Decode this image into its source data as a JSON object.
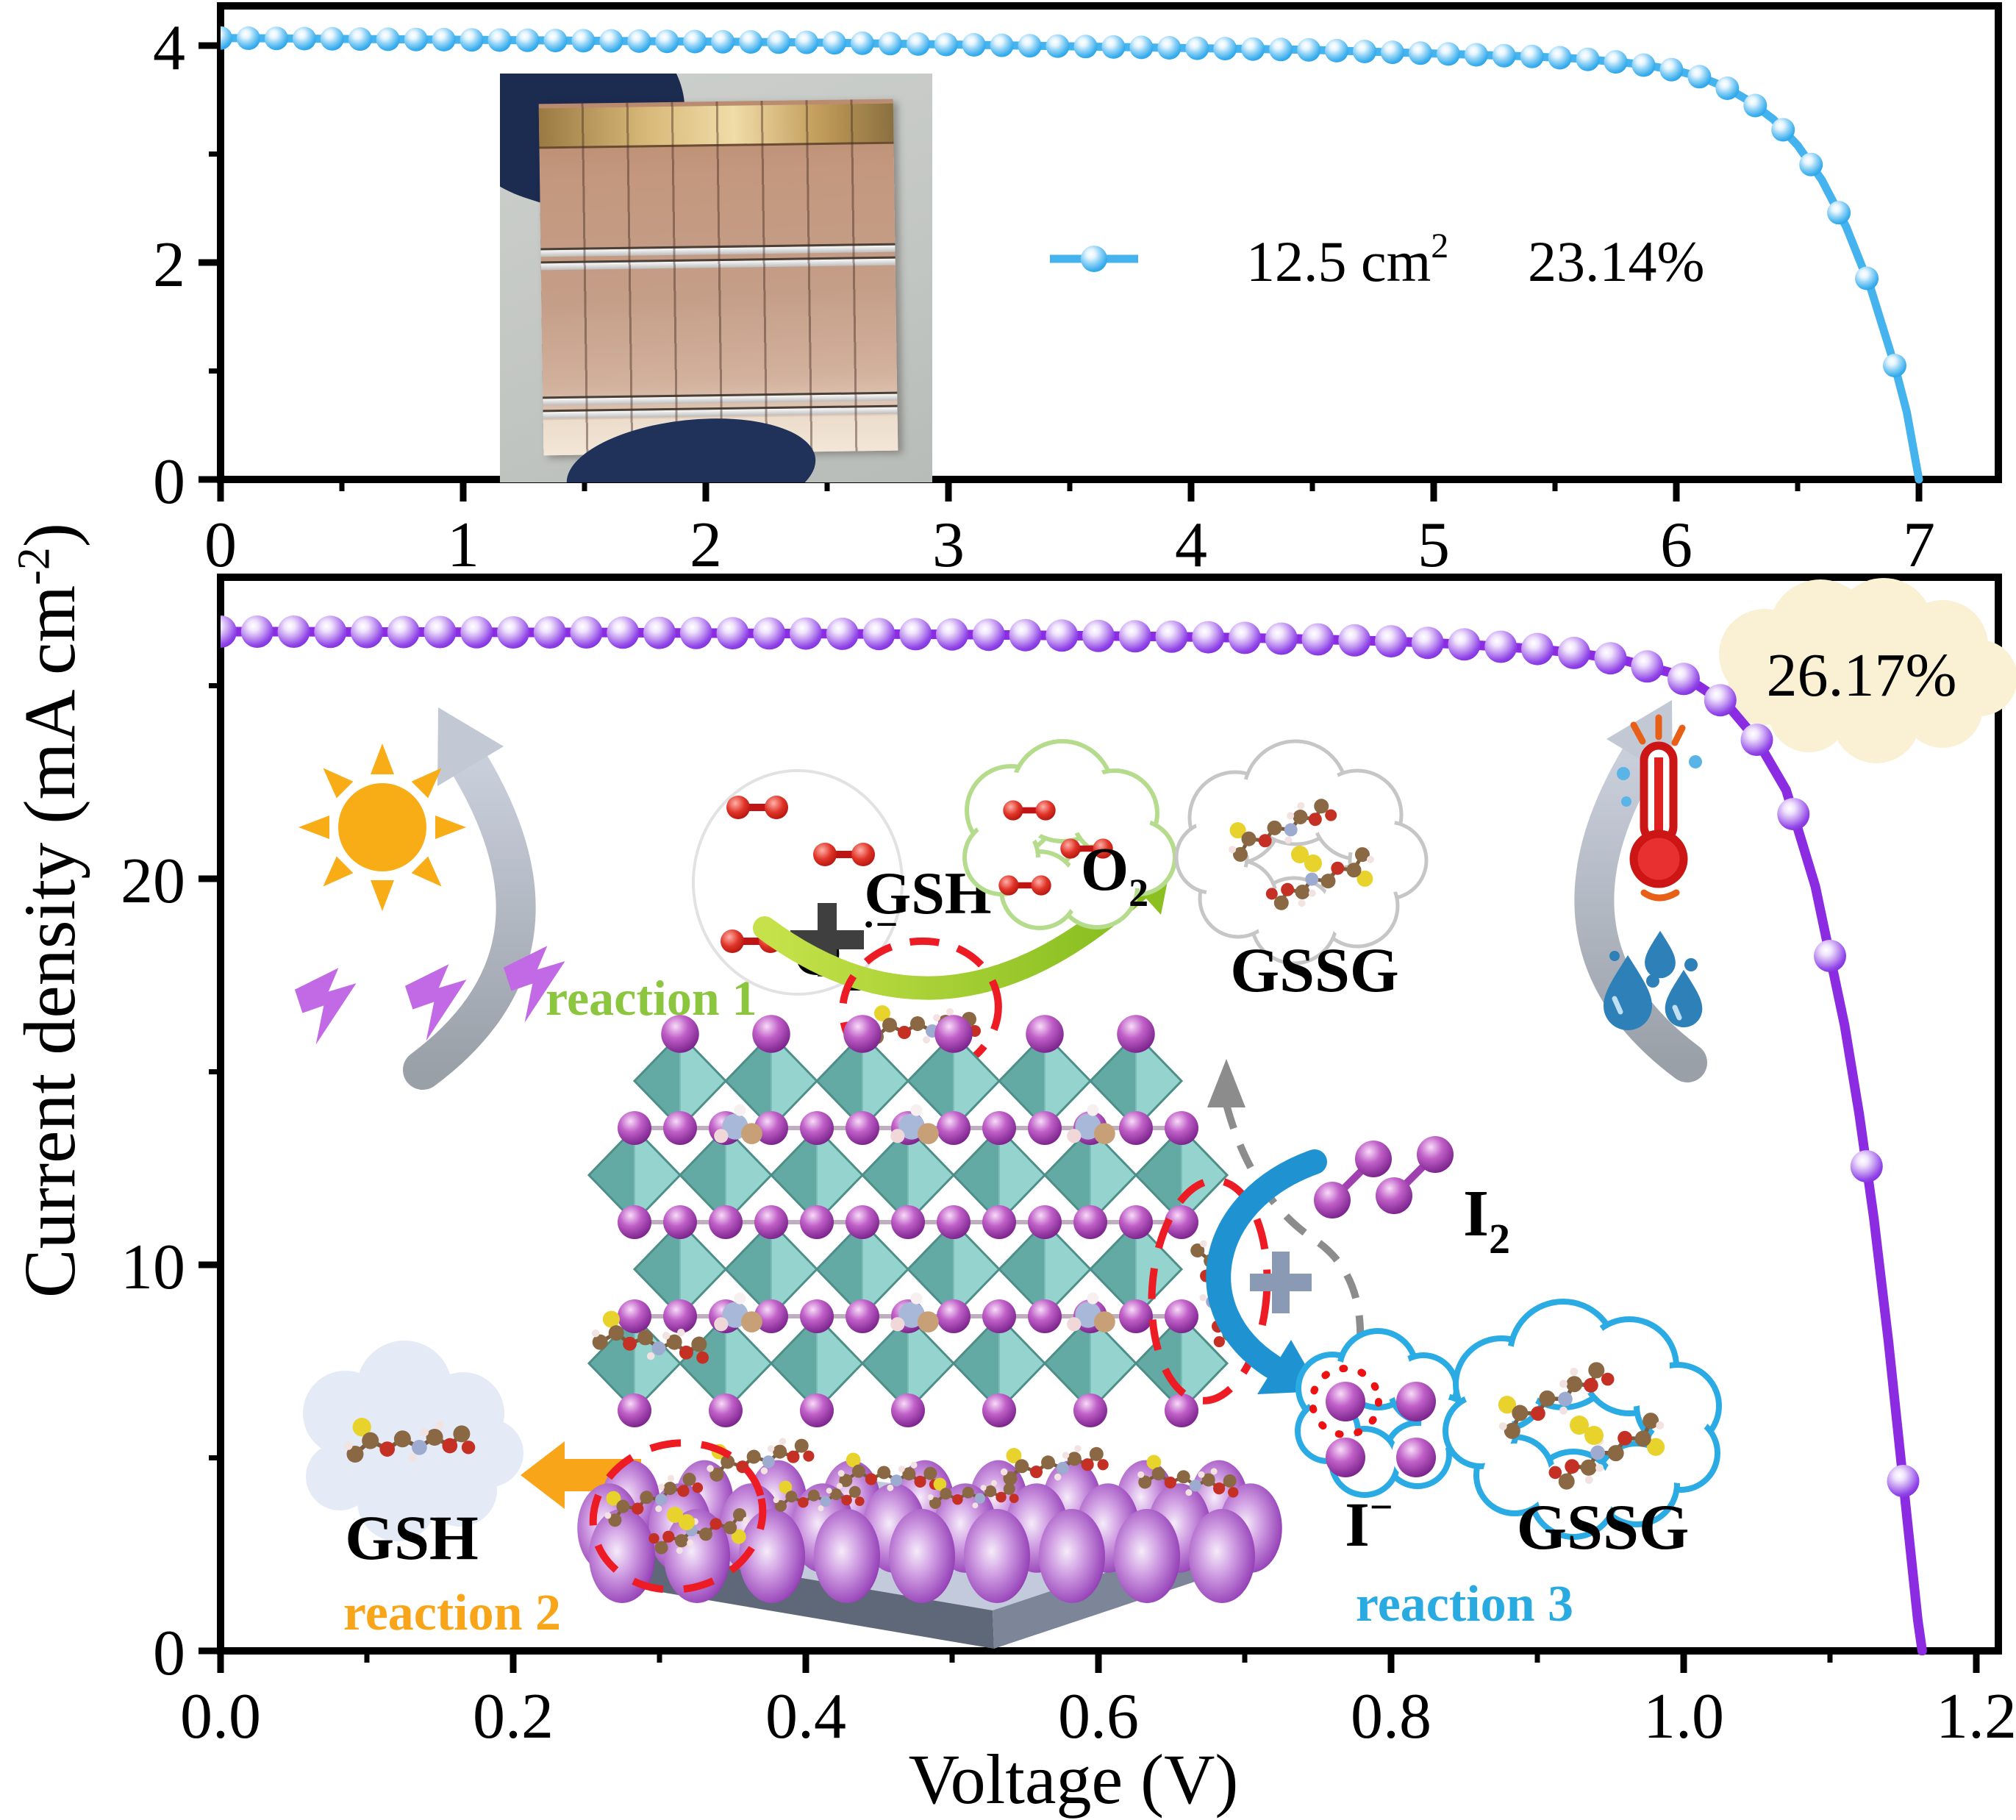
{
  "figure": {
    "y_axis_title": {
      "pre": "Current density (mA cm",
      "sup": "-2",
      "post": ")"
    },
    "background": "#ffffff"
  },
  "chart_data": [
    {
      "type": "line",
      "title": "",
      "xlabel": "",
      "ylabel": "Current density (mA cm-2)",
      "xlim": [
        0,
        7.33
      ],
      "ylim": [
        0,
        4.37
      ],
      "grid": false,
      "x_ticks": {
        "values": [
          0,
          1,
          2,
          3,
          4,
          5,
          6,
          7
        ],
        "labels": [
          "0",
          "1",
          "2",
          "3",
          "4",
          "5",
          "6",
          "7"
        ]
      },
      "x_minor_step": 0.5,
      "y_ticks": {
        "values": [
          0,
          2,
          4
        ],
        "labels": [
          "0",
          "2",
          "4"
        ]
      },
      "y_minor": [
        1,
        3
      ],
      "legend": {
        "position": "center-right",
        "area": "12.5 cm",
        "area_sup": "2",
        "pce": "23.14%"
      },
      "series": [
        {
          "name": "12.5 cm2 23.14%",
          "color": "#45b4ee",
          "marker_step": 0.115,
          "points": [
            [
              0,
              4.07
            ],
            [
              0.3,
              4.065
            ],
            [
              0.6,
              4.06
            ],
            [
              0.9,
              4.055
            ],
            [
              1.2,
              4.05
            ],
            [
              1.5,
              4.045
            ],
            [
              1.8,
              4.04
            ],
            [
              2.1,
              4.035
            ],
            [
              2.4,
              4.03
            ],
            [
              2.7,
              4.02
            ],
            [
              3.0,
              4.01
            ],
            [
              3.3,
              4.0
            ],
            [
              3.6,
              3.99
            ],
            [
              3.9,
              3.98
            ],
            [
              4.2,
              3.97
            ],
            [
              4.5,
              3.96
            ],
            [
              4.8,
              3.94
            ],
            [
              5.1,
              3.92
            ],
            [
              5.4,
              3.9
            ],
            [
              5.6,
              3.88
            ],
            [
              5.8,
              3.84
            ],
            [
              5.9,
              3.81
            ],
            [
              6.0,
              3.77
            ],
            [
              6.1,
              3.71
            ],
            [
              6.2,
              3.62
            ],
            [
              6.3,
              3.49
            ],
            [
              6.4,
              3.32
            ],
            [
              6.5,
              3.08
            ],
            [
              6.6,
              2.76
            ],
            [
              6.7,
              2.33
            ],
            [
              6.8,
              1.77
            ],
            [
              6.9,
              1.05
            ],
            [
              6.95,
              0.62
            ],
            [
              7.0,
              0
            ]
          ]
        }
      ]
    },
    {
      "type": "line",
      "title": "",
      "xlabel": "Voltage (V)",
      "ylabel": "Current density (mA cm-2)",
      "xlim": [
        0,
        1.215
      ],
      "ylim": [
        0,
        27.8
      ],
      "grid": false,
      "x_ticks": {
        "values": [
          0,
          0.2,
          0.4,
          0.6,
          0.8,
          1.0,
          1.2
        ],
        "labels": [
          "0.0",
          "0.2",
          "0.4",
          "0.6",
          "0.8",
          "1.0",
          "1.2"
        ]
      },
      "x_minor_step": 0.1,
      "y_ticks": {
        "values": [
          0,
          10,
          20
        ],
        "labels": [
          "0",
          "10",
          "20"
        ]
      },
      "y_minor": [
        5,
        15,
        25
      ],
      "annotation": {
        "text": "26.17%",
        "style": "cream-cloud"
      },
      "series": [
        {
          "name": "26.17%",
          "color": "#8b2be2",
          "marker_step": 0.025,
          "points": [
            [
              0,
              26.4
            ],
            [
              0.05,
              26.4
            ],
            [
              0.1,
              26.39
            ],
            [
              0.15,
              26.39
            ],
            [
              0.2,
              26.38
            ],
            [
              0.25,
              26.38
            ],
            [
              0.3,
              26.37
            ],
            [
              0.35,
              26.36
            ],
            [
              0.4,
              26.35
            ],
            [
              0.45,
              26.34
            ],
            [
              0.5,
              26.33
            ],
            [
              0.55,
              26.31
            ],
            [
              0.6,
              26.29
            ],
            [
              0.65,
              26.27
            ],
            [
              0.7,
              26.24
            ],
            [
              0.75,
              26.2
            ],
            [
              0.8,
              26.15
            ],
            [
              0.85,
              26.07
            ],
            [
              0.9,
              25.95
            ],
            [
              0.93,
              25.83
            ],
            [
              0.96,
              25.65
            ],
            [
              0.99,
              25.35
            ],
            [
              1.01,
              25.0
            ],
            [
              1.03,
              24.5
            ],
            [
              1.05,
              23.6
            ],
            [
              1.07,
              22.3
            ],
            [
              1.09,
              19.8
            ],
            [
              1.11,
              16.2
            ],
            [
              1.12,
              13.9
            ],
            [
              1.13,
              11.2
            ],
            [
              1.14,
              8.0
            ],
            [
              1.15,
              4.4
            ],
            [
              1.16,
              0.8
            ],
            [
              1.163,
              0
            ]
          ]
        }
      ]
    }
  ],
  "diagram": {
    "reaction1": "reaction 1",
    "reaction2": "reaction 2",
    "reaction3": "reaction 3",
    "gsh_surface": "GSH",
    "gssg_top": "GSSG",
    "gsh_released": "GSH",
    "gssg_bottom": "GSSG",
    "superoxide": {
      "base": "O",
      "sub": "2",
      "sup": "·−"
    },
    "oxygen": {
      "base": "O",
      "sub": "2"
    },
    "iodine": {
      "base": "I",
      "sub": "2"
    },
    "iodide": {
      "base": "I",
      "sup": "−"
    },
    "plus_top": "+",
    "plus_right": "+",
    "colors": {
      "curve_top": "#45b4ee",
      "curve_bottom": "#8b2be2",
      "reaction1": "#8CC63E",
      "reaction2": "#F9A51A",
      "reaction3": "#29ABE2",
      "efficiency_cloud": "#FAF0D4",
      "blue_cloud_border": "#2aabe4",
      "green_cloud_border": "#b5dc8c",
      "sun": "#F8AD17",
      "lightning": "#C269E6",
      "red_dashed": "#ED1C24"
    }
  }
}
